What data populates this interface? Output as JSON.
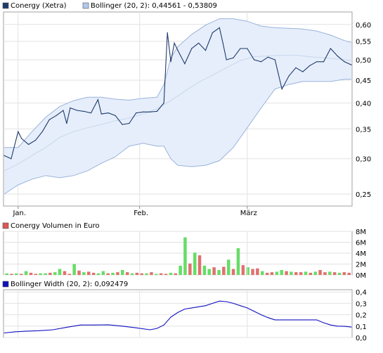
{
  "chart_data": [
    {
      "type": "line",
      "legend": [
        {
          "label": "Conergy (Xetra)",
          "color": "#1f3a6b"
        },
        {
          "label": "Bollinger (20, 2): 0,44561 - 0,53809",
          "color": "#b0c8ec"
        }
      ],
      "yscale": "log",
      "ylim": [
        0.235,
        0.64
      ],
      "ytick_labels": [
        "0,60",
        "0,55",
        "0,50",
        "0,45",
        "0,40",
        "0,35",
        "0,30",
        "0,25"
      ],
      "yticks": [
        0.6,
        0.55,
        0.5,
        0.45,
        0.4,
        0.35,
        0.3,
        0.25
      ],
      "xtick_labels": [
        "Jan.",
        "Feb.",
        "März"
      ],
      "x_range": [
        0,
        100
      ],
      "xticks": [
        4,
        39,
        70
      ],
      "grid": true,
      "series": [
        {
          "name": "Conergy (Xetra)",
          "color": "#1f3a6b",
          "x": [
            0,
            2,
            4,
            5,
            7,
            9,
            11,
            13,
            15,
            17,
            18,
            19,
            21,
            23,
            25,
            27,
            28,
            30,
            32,
            34,
            36,
            38,
            40,
            42,
            44,
            46,
            47,
            48,
            49,
            50,
            52,
            54,
            56,
            58,
            60,
            62,
            63,
            64,
            66,
            68,
            70,
            72,
            74,
            76,
            78,
            80,
            82,
            84,
            86,
            88,
            90,
            92,
            94,
            96,
            98,
            100
          ],
          "values": [
            0.305,
            0.3,
            0.345,
            0.333,
            0.323,
            0.33,
            0.345,
            0.367,
            0.375,
            0.385,
            0.36,
            0.39,
            0.385,
            0.383,
            0.38,
            0.407,
            0.378,
            0.38,
            0.375,
            0.358,
            0.36,
            0.38,
            0.382,
            0.382,
            0.383,
            0.4,
            0.575,
            0.495,
            0.545,
            0.525,
            0.49,
            0.53,
            0.545,
            0.525,
            0.575,
            0.59,
            0.545,
            0.5,
            0.505,
            0.53,
            0.53,
            0.5,
            0.495,
            0.507,
            0.5,
            0.43,
            0.46,
            0.48,
            0.47,
            0.485,
            0.495,
            0.495,
            0.53,
            0.51,
            0.495,
            0.487
          ]
        },
        {
          "name": "Bollinger Upper",
          "color": "#9ab3dc",
          "x": [
            0,
            4,
            8,
            12,
            16,
            20,
            24,
            28,
            32,
            36,
            40,
            44,
            46,
            48,
            50,
            54,
            58,
            62,
            66,
            70,
            74,
            78,
            82,
            86,
            90,
            94,
            98,
            100
          ],
          "values": [
            0.318,
            0.318,
            0.345,
            0.372,
            0.393,
            0.405,
            0.412,
            0.412,
            0.408,
            0.406,
            0.41,
            0.412,
            0.44,
            0.505,
            0.535,
            0.57,
            0.598,
            0.618,
            0.618,
            0.61,
            0.595,
            0.59,
            0.588,
            0.586,
            0.58,
            0.568,
            0.552,
            0.547
          ]
        },
        {
          "name": "Bollinger Mid",
          "color": "#c8d6ec",
          "x": [
            0,
            4,
            8,
            12,
            16,
            20,
            24,
            28,
            32,
            36,
            40,
            44,
            48,
            52,
            56,
            60,
            64,
            68,
            72,
            76,
            80,
            84,
            88,
            92,
            96,
            100
          ],
          "values": [
            0.282,
            0.292,
            0.305,
            0.318,
            0.335,
            0.345,
            0.352,
            0.358,
            0.365,
            0.37,
            0.378,
            0.388,
            0.405,
            0.425,
            0.445,
            0.462,
            0.48,
            0.498,
            0.508,
            0.51,
            0.512,
            0.512,
            0.508,
            0.505,
            0.502,
            0.498
          ]
        },
        {
          "name": "Bollinger Lower",
          "color": "#9ab3dc",
          "x": [
            0,
            4,
            8,
            12,
            16,
            20,
            24,
            28,
            32,
            36,
            40,
            44,
            46,
            48,
            50,
            54,
            58,
            62,
            66,
            70,
            74,
            78,
            82,
            86,
            90,
            94,
            98,
            100
          ],
          "values": [
            0.25,
            0.262,
            0.27,
            0.275,
            0.272,
            0.275,
            0.282,
            0.293,
            0.303,
            0.32,
            0.325,
            0.32,
            0.32,
            0.3,
            0.29,
            0.288,
            0.29,
            0.297,
            0.318,
            0.352,
            0.39,
            0.43,
            0.44,
            0.447,
            0.447,
            0.447,
            0.452,
            0.452
          ]
        }
      ]
    },
    {
      "type": "bar",
      "legend": [
        {
          "label": "Conergy Volumen in Euro",
          "color": "#e05555"
        }
      ],
      "ylim": [
        0,
        8
      ],
      "ytick_labels": [
        "8M",
        "6M",
        "4M",
        "2M",
        "0M"
      ],
      "yticks": [
        8,
        6,
        4,
        2,
        0
      ],
      "unit": "M",
      "colors": {
        "up": "#66dd66",
        "down": "#e07070"
      },
      "values": [
        0.3,
        0.2,
        0.3,
        0.2,
        0.7,
        0.4,
        0.2,
        0.3,
        0.3,
        0.4,
        0.5,
        1.1,
        0.7,
        0.2,
        2.0,
        0.8,
        0.5,
        0.6,
        0.4,
        0.3,
        0.7,
        0.3,
        0.4,
        0.5,
        0.9,
        0.5,
        0.3,
        0.4,
        0.3,
        0.3,
        0.5,
        0.2,
        0.3,
        0.2,
        0.4,
        0.3,
        1.7,
        6.9,
        2.1,
        4.1,
        3.6,
        1.7,
        1.1,
        1.4,
        0.9,
        1.5,
        2.8,
        1.1,
        4.9,
        1.8,
        1.4,
        1.1,
        1.2,
        0.7,
        0.4,
        0.5,
        0.6,
        0.9,
        0.7,
        0.6,
        0.5,
        0.5,
        0.6,
        0.4,
        0.6,
        0.9,
        0.5,
        0.6,
        0.5,
        0.4,
        0.5,
        0.4
      ],
      "up": [
        1,
        0,
        1,
        0,
        1,
        0,
        0,
        1,
        1,
        0,
        1,
        1,
        0,
        0,
        1,
        0,
        1,
        0,
        0,
        1,
        1,
        0,
        1,
        0,
        1,
        0,
        1,
        0,
        0,
        1,
        0,
        1,
        0,
        0,
        1,
        0,
        1,
        1,
        0,
        1,
        0,
        1,
        1,
        0,
        1,
        0,
        1,
        0,
        1,
        0,
        1,
        0,
        0,
        1,
        0,
        0,
        1,
        1,
        0,
        1,
        0,
        0,
        1,
        0,
        1,
        0,
        0,
        1,
        0,
        1,
        0,
        0
      ]
    },
    {
      "type": "line",
      "legend": [
        {
          "label": "Bollinger Width (20, 2): 0,092479",
          "color": "#1010c0"
        }
      ],
      "ylim": [
        0,
        0.42
      ],
      "ytick_labels": [
        "0,4",
        "0,3",
        "0,2",
        "0,1",
        "0,0"
      ],
      "yticks": [
        0.4,
        0.3,
        0.2,
        0.1,
        0.0
      ],
      "series": [
        {
          "name": "Bollinger Width",
          "color": "#1010c0",
          "x": [
            0,
            3,
            6,
            10,
            14,
            18,
            22,
            26,
            30,
            34,
            38,
            42,
            44,
            46,
            48,
            50,
            52,
            54,
            56,
            58,
            60,
            62,
            64,
            66,
            68,
            70,
            72,
            74,
            76,
            78,
            80,
            82,
            84,
            86,
            88,
            90,
            92,
            94,
            96,
            98,
            100
          ],
          "values": [
            0.04,
            0.05,
            0.055,
            0.06,
            0.068,
            0.09,
            0.11,
            0.11,
            0.112,
            0.1,
            0.085,
            0.068,
            0.08,
            0.11,
            0.18,
            0.22,
            0.25,
            0.26,
            0.27,
            0.28,
            0.3,
            0.32,
            0.315,
            0.3,
            0.28,
            0.26,
            0.23,
            0.2,
            0.175,
            0.155,
            0.155,
            0.155,
            0.155,
            0.155,
            0.155,
            0.155,
            0.13,
            0.11,
            0.1,
            0.098,
            0.092
          ]
        }
      ]
    }
  ]
}
